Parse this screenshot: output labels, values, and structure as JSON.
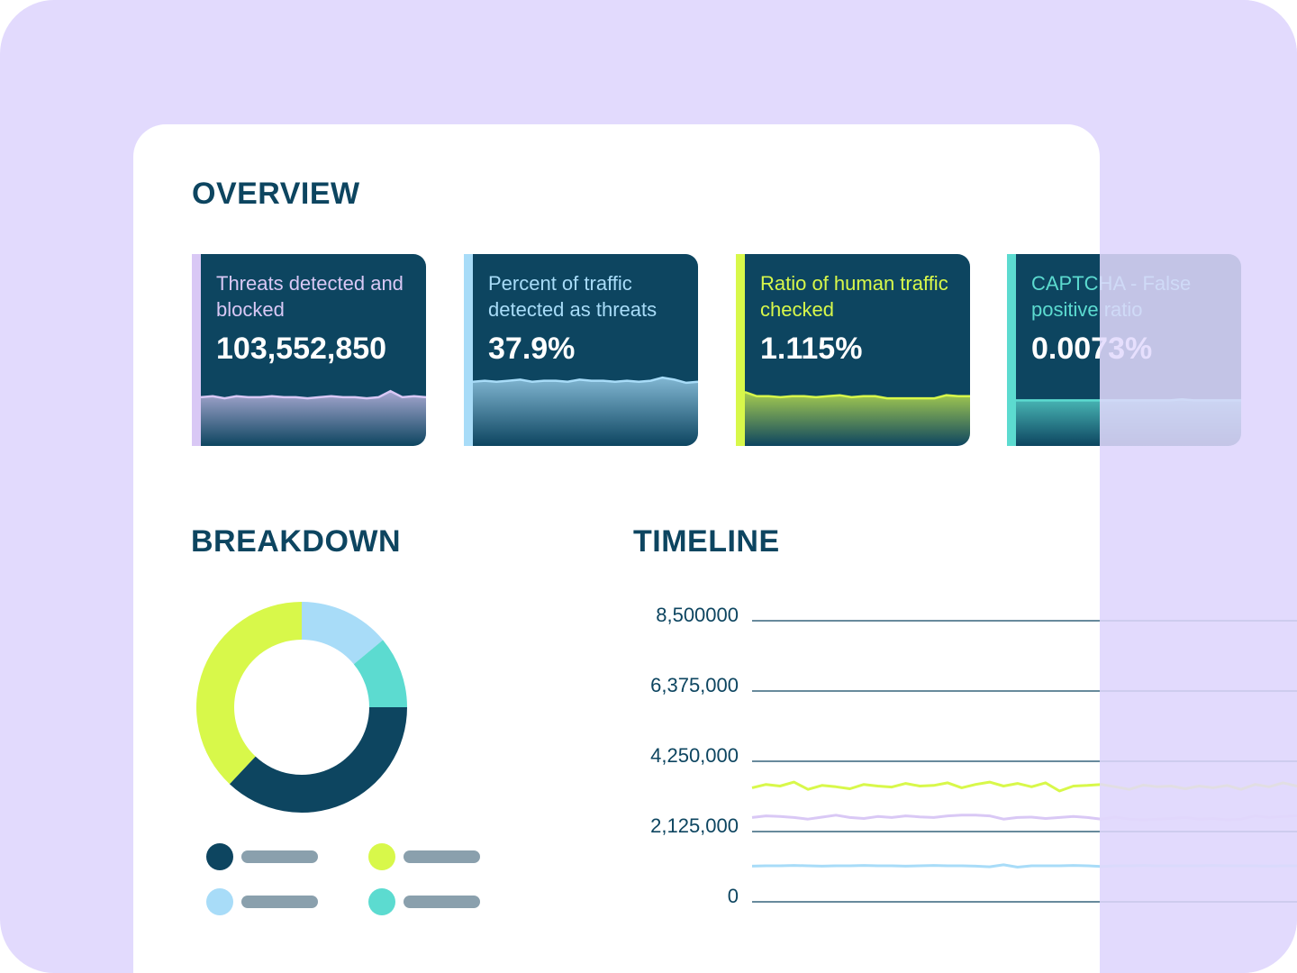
{
  "overview": {
    "title": "OVERVIEW",
    "spark_ylim": [
      0,
      100
    ],
    "cards": [
      {
        "label": "Threats detected and blocked",
        "value": "103,552,850",
        "color": "#d9c8f5",
        "spark": [
          47,
          48,
          46,
          48,
          47,
          47,
          48,
          47,
          47,
          46,
          47,
          48,
          47,
          47,
          46,
          47,
          53,
          47,
          48,
          47
        ]
      },
      {
        "label": "Percent of traffic detected as threats",
        "value": "37.9%",
        "color": "#a8dcf8",
        "spark": [
          62,
          63,
          62,
          63,
          64,
          62,
          63,
          63,
          62,
          64,
          63,
          63,
          62,
          63,
          62,
          63,
          66,
          64,
          61,
          62
        ]
      },
      {
        "label": "Ratio of human traffic checked",
        "value": "1.115%",
        "color": "#d8f84a",
        "spark": [
          52,
          48,
          48,
          47,
          48,
          48,
          47,
          48,
          49,
          47,
          48,
          48,
          46,
          46,
          46,
          46,
          46,
          49,
          48,
          48
        ]
      },
      {
        "label": "CAPTCHA - False positive ratio",
        "value": "0.0073%",
        "color": "#5cdbd0",
        "spark": [
          44,
          44,
          44,
          44,
          44,
          44,
          44,
          44,
          44,
          44,
          44,
          44,
          44,
          44,
          45,
          44,
          44,
          44,
          44,
          44
        ]
      }
    ]
  },
  "chart_data": [
    {
      "type": "pie",
      "title": "BREAKDOWN",
      "values": [
        14,
        11,
        37,
        38
      ],
      "colors": [
        "#a8dcf8",
        "#5cdbd0",
        "#0d4560",
        "#d8f84a"
      ]
    },
    {
      "type": "line",
      "title": "TIMELINE",
      "ylim": [
        0,
        8500000
      ],
      "yticks": [
        0,
        {
          "value": 2125000,
          "label": "2,125,000"
        },
        {
          "value": 4250000,
          "label": "4,250,000"
        },
        {
          "value": 6375000,
          "label": "6,375,000"
        },
        {
          "value": 8500000,
          "label": "8,500000"
        }
      ],
      "grid": true,
      "series": [
        {
          "color": "#d8f84a",
          "values": [
            3450000,
            3550000,
            3500000,
            3620000,
            3400000,
            3520000,
            3480000,
            3420000,
            3550000,
            3500000,
            3470000,
            3580000,
            3500000,
            3520000,
            3600000,
            3450000,
            3550000,
            3620000,
            3500000,
            3580000,
            3480000,
            3600000,
            3350000,
            3500000,
            3520000,
            3550000,
            3480000,
            3400000,
            3530000,
            3480000,
            3500000,
            3420000,
            3500000,
            3450000,
            3520000,
            3400000,
            3550000,
            3480000,
            3600000,
            3500000
          ]
        },
        {
          "color": "#d9c8f5",
          "values": [
            2550000,
            2600000,
            2580000,
            2550000,
            2500000,
            2560000,
            2620000,
            2550000,
            2520000,
            2580000,
            2550000,
            2600000,
            2570000,
            2550000,
            2600000,
            2620000,
            2620000,
            2600000,
            2500000,
            2550000,
            2560000,
            2520000,
            2550000,
            2580000,
            2550000,
            2500000,
            2560000,
            2500000,
            2480000,
            2500000,
            2520000,
            2550000,
            2500000,
            2520000,
            2480000,
            2500000,
            2600000,
            2550000,
            2580000,
            2600000
          ]
        },
        {
          "color": "#a8dcf8",
          "values": [
            1080000,
            1090000,
            1090000,
            1100000,
            1090000,
            1080000,
            1090000,
            1090000,
            1100000,
            1090000,
            1090000,
            1080000,
            1090000,
            1100000,
            1090000,
            1090000,
            1080000,
            1060000,
            1120000,
            1050000,
            1090000,
            1090000,
            1090000,
            1100000,
            1090000,
            1070000,
            1090000,
            1090000,
            1100000,
            1090000,
            1090000,
            1090000,
            1090000,
            1100000,
            1090000,
            1090000,
            1090000,
            1080000,
            1090000,
            1090000
          ]
        }
      ]
    }
  ]
}
